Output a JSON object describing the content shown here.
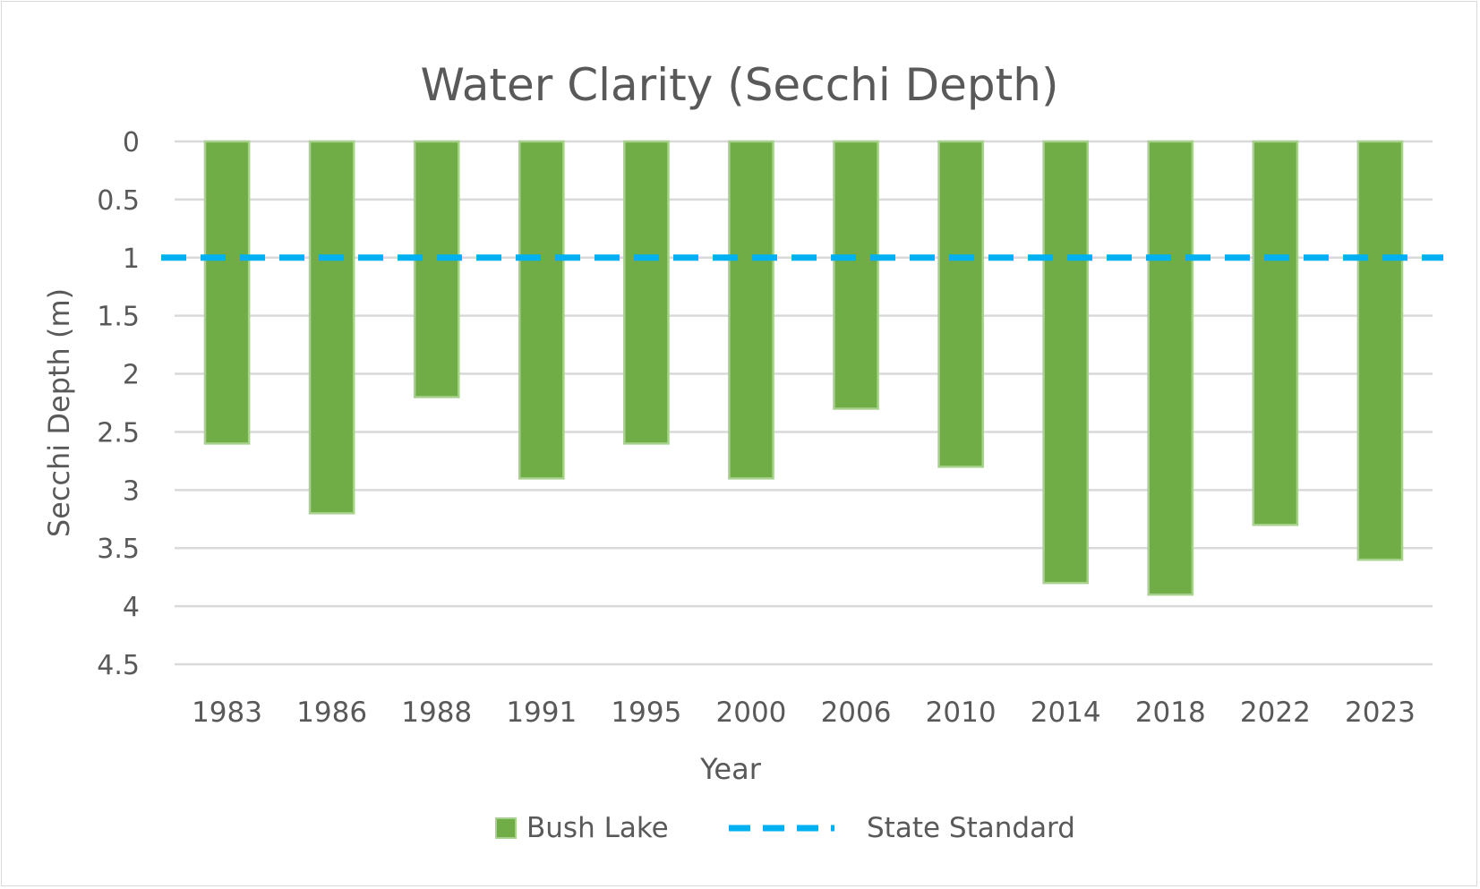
{
  "chart_data": {
    "type": "bar",
    "title": "Water Clarity (Secchi Depth)",
    "xlabel": "Year",
    "ylabel": "Secchi Depth (m)",
    "categories": [
      "1983",
      "1986",
      "1988",
      "1991",
      "1995",
      "2000",
      "2006",
      "2010",
      "2014",
      "2018",
      "2022",
      "2023"
    ],
    "series": [
      {
        "name": "Bush Lake",
        "type": "bar",
        "values": [
          2.6,
          3.2,
          2.2,
          2.9,
          2.6,
          2.9,
          2.3,
          2.8,
          3.8,
          3.9,
          3.3,
          3.6
        ],
        "color": "#70AD47",
        "border_color": "#A9D18E"
      },
      {
        "name": "State Standard",
        "type": "line",
        "style": "dashed",
        "values": [
          1,
          1,
          1,
          1,
          1,
          1,
          1,
          1,
          1,
          1,
          1,
          1
        ],
        "color": "#00B0F0"
      }
    ],
    "ylim": [
      0,
      4.5
    ],
    "y_inverted": true,
    "yticks": [
      "0",
      "0.5",
      "1",
      "1.5",
      "2",
      "2.5",
      "3",
      "3.5",
      "4",
      "4.5"
    ],
    "grid": true,
    "legend_position": "bottom",
    "colors": {
      "text": "#595959",
      "grid": "#d9d9d9"
    }
  }
}
